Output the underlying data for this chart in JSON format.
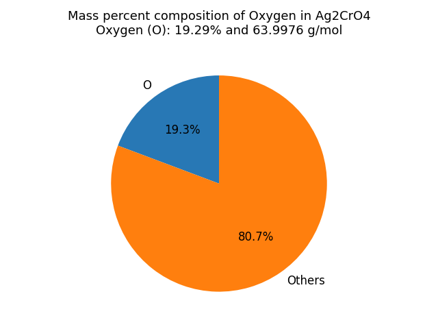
{
  "title": "Mass percent composition of Oxygen in Ag2CrO4\nOxygen (O): 19.29% and 63.9976 g/mol",
  "slices": [
    19.29,
    80.71
  ],
  "labels": [
    "O",
    "Others"
  ],
  "colors": [
    "#2878b5",
    "#ff7f0e"
  ],
  "startangle": 90,
  "counterclock": true,
  "title_fontsize": 13,
  "label_fontsize": 12,
  "autopct_fontsize": 12
}
